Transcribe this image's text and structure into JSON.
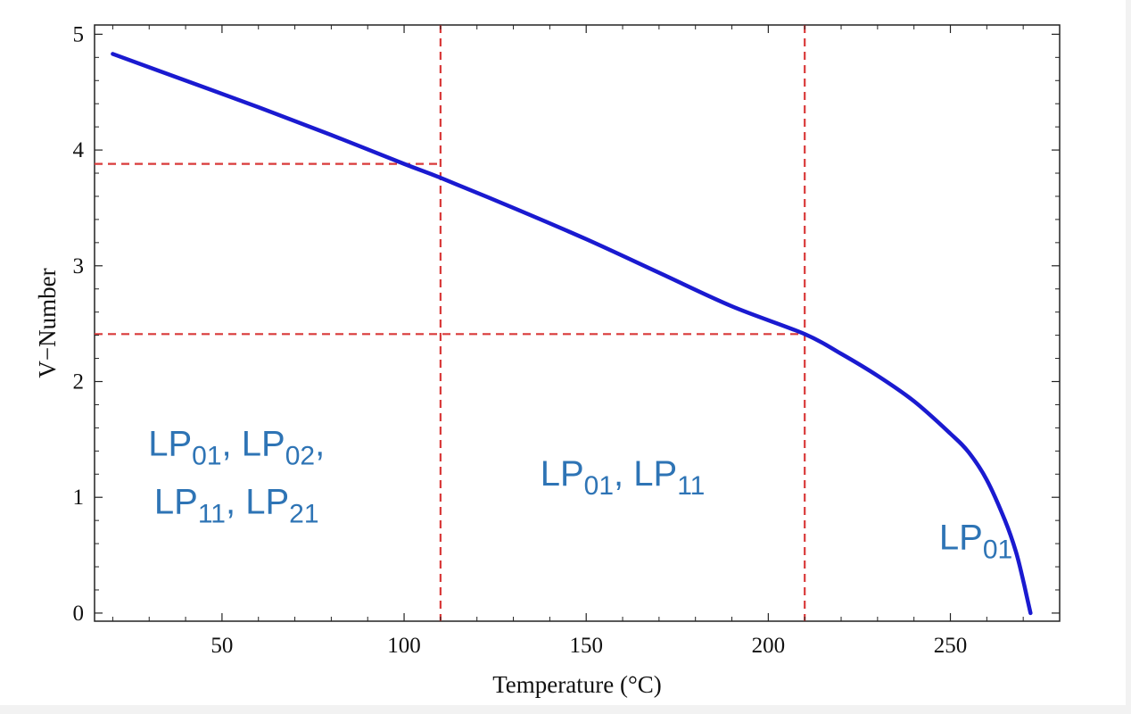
{
  "chart_data": {
    "type": "line",
    "title": "",
    "xlabel": "Temperature (°C)",
    "ylabel": "V−Number",
    "xlim": [
      15,
      280
    ],
    "ylim": [
      -0.07,
      5.08
    ],
    "x_ticks": [
      {
        "value": 50,
        "label": "50"
      },
      {
        "value": 100,
        "label": "100"
      },
      {
        "value": 150,
        "label": "150"
      },
      {
        "value": 200,
        "label": "200"
      },
      {
        "value": 250,
        "label": "250"
      }
    ],
    "y_ticks": [
      {
        "value": 0,
        "label": "0"
      },
      {
        "value": 1,
        "label": "1"
      },
      {
        "value": 2,
        "label": "2"
      },
      {
        "value": 3,
        "label": "3"
      },
      {
        "value": 4,
        "label": "4"
      },
      {
        "value": 5,
        "label": "5"
      }
    ],
    "grid": false,
    "legend": "none",
    "series": [
      {
        "color": "#1a1ad0",
        "x": [
          20,
          40,
          60,
          80,
          100,
          110,
          130,
          150,
          170,
          190,
          210,
          220,
          230,
          240,
          250,
          255,
          260,
          265,
          268,
          270,
          271,
          272
        ],
        "y": [
          4.83,
          4.6,
          4.37,
          4.13,
          3.88,
          3.76,
          3.5,
          3.23,
          2.94,
          2.65,
          2.41,
          2.24,
          2.05,
          1.83,
          1.55,
          1.39,
          1.15,
          0.8,
          0.53,
          0.28,
          0.14,
          0.0
        ]
      }
    ],
    "reference_lines": [
      {
        "orientation": "vertical",
        "value": 110,
        "from": -0.07,
        "to": 5.08,
        "color": "#d93a3a",
        "dashed": true
      },
      {
        "orientation": "vertical",
        "value": 210,
        "from": -0.07,
        "to": 5.08,
        "color": "#d93a3a",
        "dashed": true
      },
      {
        "orientation": "horizontal",
        "value": 3.88,
        "from": 15,
        "to": 110,
        "color": "#d93a3a",
        "dashed": true
      },
      {
        "orientation": "horizontal",
        "value": 2.41,
        "from": 15,
        "to": 210,
        "color": "#d93a3a",
        "dashed": true
      }
    ],
    "region_labels": [
      {
        "lines": [
          [
            {
              "base": "LP",
              "sub": "01"
            },
            {
              "text": ", "
            },
            {
              "base": "LP",
              "sub": "02"
            },
            {
              "text": ","
            }
          ],
          [
            {
              "base": "LP",
              "sub": "11"
            },
            {
              "text": ", "
            },
            {
              "base": "LP",
              "sub": "21"
            }
          ]
        ]
      },
      {
        "lines": [
          [
            {
              "base": "LP",
              "sub": "01"
            },
            {
              "text": ", "
            },
            {
              "base": "LP",
              "sub": "11"
            }
          ]
        ]
      },
      {
        "lines": [
          [
            {
              "base": "LP",
              "sub": "01"
            }
          ]
        ]
      }
    ],
    "colors": {
      "curve": "#1a1ad0",
      "reference": "#d93a3a",
      "region_text": "#2e74b5"
    }
  }
}
